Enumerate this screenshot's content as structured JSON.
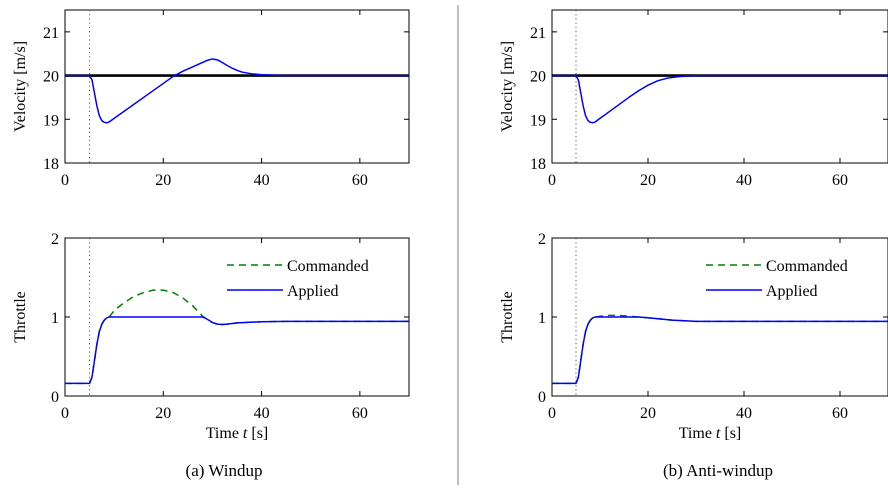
{
  "figure": {
    "captions": {
      "a": "(a) Windup",
      "b": "(b) Anti-windup"
    },
    "colors": {
      "reference": "#000000",
      "applied": "#0000ff",
      "commanded": "#008000",
      "event_marker": "#555555",
      "divider": "#808080"
    }
  },
  "chart_data": [
    {
      "type": "line",
      "panel": "a",
      "ylabel": "Velocity [m/s]",
      "xlabel": "",
      "xlim": [
        0,
        70
      ],
      "ylim": [
        18,
        21.5
      ],
      "xticks": [
        0,
        20,
        40,
        60
      ],
      "yticks": [
        18,
        19,
        20,
        21
      ],
      "event_x": 5,
      "series": [
        {
          "role": "reference",
          "x": [
            0,
            70
          ],
          "y": [
            20,
            20
          ]
        },
        {
          "role": "velocity",
          "x": [
            0,
            5,
            5.5,
            6,
            6.5,
            7,
            7.5,
            8,
            8.5,
            9,
            10,
            12,
            14,
            16,
            18,
            20,
            22,
            24,
            26,
            28,
            29,
            30,
            31,
            32,
            33,
            34,
            35,
            36,
            38,
            40,
            42,
            45,
            50,
            60,
            70
          ],
          "y": [
            20,
            20,
            19.9,
            19.6,
            19.3,
            19.08,
            18.97,
            18.93,
            18.92,
            18.94,
            19.02,
            19.18,
            19.34,
            19.5,
            19.66,
            19.82,
            19.98,
            20.1,
            20.2,
            20.3,
            20.35,
            20.38,
            20.36,
            20.3,
            20.23,
            20.17,
            20.12,
            20.08,
            20.04,
            20.02,
            20.01,
            20.0,
            20.0,
            20.0,
            20.0
          ]
        }
      ]
    },
    {
      "type": "line",
      "panel": "a",
      "ylabel": "Throttle",
      "xlabel": "Time t [s]",
      "xlim": [
        0,
        70
      ],
      "ylim": [
        0,
        2
      ],
      "xticks": [
        0,
        20,
        40,
        60
      ],
      "yticks": [
        0,
        1,
        2
      ],
      "event_x": 5,
      "legend": {
        "position": "top-right"
      },
      "series": [
        {
          "name": "Commanded",
          "style": "dashed",
          "x": [
            0,
            5,
            5.5,
            6,
            6.5,
            7,
            7.5,
            8,
            8.5,
            9,
            10,
            12,
            14,
            16,
            18,
            20,
            22,
            24,
            26,
            28,
            29,
            30,
            31,
            32,
            33,
            35,
            40,
            45,
            50,
            60,
            70
          ],
          "y": [
            0.16,
            0.16,
            0.24,
            0.45,
            0.66,
            0.82,
            0.91,
            0.96,
            0.99,
            1.0,
            1.08,
            1.18,
            1.26,
            1.31,
            1.34,
            1.34,
            1.31,
            1.24,
            1.14,
            1.01,
            0.97,
            0.93,
            0.91,
            0.905,
            0.91,
            0.925,
            0.94,
            0.945,
            0.945,
            0.945,
            0.945
          ]
        },
        {
          "name": "Applied",
          "style": "solid",
          "x": [
            0,
            5,
            5.5,
            6,
            6.5,
            7,
            7.5,
            8,
            8.5,
            9,
            10,
            20,
            28,
            29,
            30,
            31,
            32,
            33,
            35,
            40,
            45,
            50,
            60,
            70
          ],
          "y": [
            0.16,
            0.16,
            0.24,
            0.45,
            0.66,
            0.82,
            0.91,
            0.96,
            0.99,
            1.0,
            1.0,
            1.0,
            1.0,
            0.97,
            0.93,
            0.91,
            0.905,
            0.91,
            0.925,
            0.94,
            0.945,
            0.945,
            0.945,
            0.945
          ]
        }
      ]
    },
    {
      "type": "line",
      "panel": "b",
      "ylabel": "Velocity [m/s]",
      "xlabel": "",
      "xlim": [
        0,
        70
      ],
      "ylim": [
        18,
        21.5
      ],
      "xticks": [
        0,
        20,
        40,
        60
      ],
      "yticks": [
        18,
        19,
        20,
        21
      ],
      "event_x": 5,
      "series": [
        {
          "role": "reference",
          "x": [
            0,
            70
          ],
          "y": [
            20,
            20
          ]
        },
        {
          "role": "velocity",
          "x": [
            0,
            5,
            5.5,
            6,
            6.5,
            7,
            7.5,
            8,
            8.5,
            9,
            10,
            12,
            14,
            16,
            18,
            20,
            22,
            24,
            26,
            28,
            30,
            35,
            40,
            50,
            70
          ],
          "y": [
            20,
            20,
            19.9,
            19.6,
            19.3,
            19.08,
            18.97,
            18.93,
            18.92,
            18.94,
            19.02,
            19.18,
            19.34,
            19.5,
            19.65,
            19.78,
            19.88,
            19.94,
            19.97,
            19.99,
            20.0,
            20.0,
            20.0,
            20.0,
            20.0
          ]
        }
      ]
    },
    {
      "type": "line",
      "panel": "b",
      "ylabel": "Throttle",
      "xlabel": "Time t [s]",
      "xlim": [
        0,
        70
      ],
      "ylim": [
        0,
        2
      ],
      "xticks": [
        0,
        20,
        40,
        60
      ],
      "yticks": [
        0,
        1,
        2
      ],
      "event_x": 5,
      "legend": {
        "position": "top-right"
      },
      "series": [
        {
          "name": "Commanded",
          "style": "dashed",
          "x": [
            0,
            5,
            5.5,
            6,
            6.5,
            7,
            7.5,
            8,
            8.5,
            9,
            10,
            12,
            14,
            16,
            18,
            20,
            25,
            30,
            40,
            50,
            70
          ],
          "y": [
            0.16,
            0.16,
            0.24,
            0.45,
            0.66,
            0.82,
            0.91,
            0.96,
            0.99,
            1.0,
            1.01,
            1.02,
            1.02,
            1.01,
            1.0,
            0.99,
            0.96,
            0.945,
            0.945,
            0.945,
            0.945
          ]
        },
        {
          "name": "Applied",
          "style": "solid",
          "x": [
            0,
            5,
            5.5,
            6,
            6.5,
            7,
            7.5,
            8,
            8.5,
            9,
            10,
            12,
            14,
            16,
            18,
            20,
            25,
            30,
            40,
            50,
            70
          ],
          "y": [
            0.16,
            0.16,
            0.24,
            0.45,
            0.66,
            0.82,
            0.91,
            0.96,
            0.99,
            1.0,
            1.0,
            1.0,
            1.0,
            1.0,
            1.0,
            0.99,
            0.96,
            0.945,
            0.945,
            0.945,
            0.945
          ]
        }
      ]
    }
  ]
}
